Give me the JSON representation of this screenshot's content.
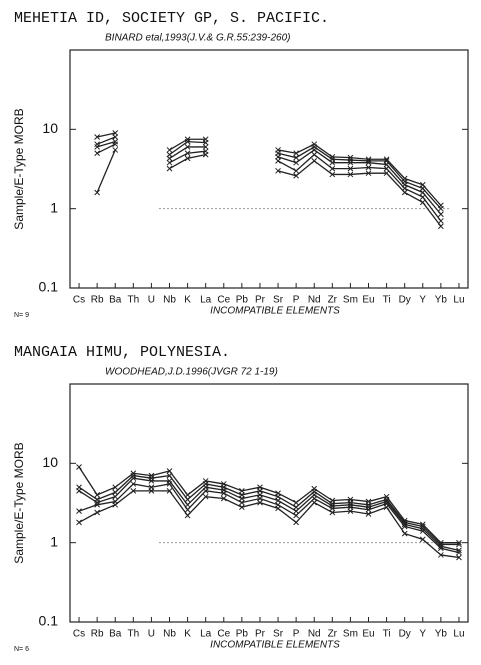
{
  "chart_data": [
    {
      "type": "line",
      "title": "MEHETIA ID, SOCIETY GP, S. PACIFIC.",
      "subtitle": "BINARD etal,1993(J.V.& G.R.55:239-260)",
      "y_label": "Sample/E-Type MORB",
      "x_label": "INCOMPATIBLE ELEMENTS",
      "note": "N= 9",
      "categories": [
        "Cs",
        "Rb",
        "Ba",
        "Th",
        "U",
        "Nb",
        "K",
        "La",
        "Ce",
        "Pb",
        "Pr",
        "Sr",
        "P",
        "Nd",
        "Zr",
        "Sm",
        "Eu",
        "Ti",
        "Dy",
        "Y",
        "Yb",
        "Lu"
      ],
      "log_scale": true,
      "ylim": [
        0.1,
        100
      ],
      "yticks": [
        0.1,
        1,
        10
      ],
      "reference_line": 1,
      "color": "#222222",
      "series": [
        {
          "values": [
            null,
            8,
            9,
            null,
            null,
            5.5,
            7.5,
            7.5,
            null,
            null,
            null,
            5.5,
            5,
            6.5,
            4.5,
            4.4,
            4.2,
            4.2,
            2.4,
            2,
            1.1,
            null
          ]
        },
        {
          "values": [
            null,
            6.5,
            8,
            null,
            null,
            4.8,
            7,
            6.8,
            null,
            null,
            null,
            5,
            4.4,
            6,
            4.2,
            4.1,
            4,
            4,
            2.2,
            1.8,
            1,
            null
          ]
        },
        {
          "values": [
            null,
            6,
            7,
            null,
            null,
            4.3,
            6,
            6,
            null,
            null,
            null,
            4.5,
            3.8,
            5.5,
            3.8,
            3.8,
            3.8,
            3.6,
            2,
            1.6,
            0.85,
            null
          ]
        },
        {
          "values": [
            null,
            5,
            6.5,
            null,
            null,
            3.8,
            5,
            5.3,
            null,
            null,
            null,
            4,
            3,
            4.8,
            3.2,
            3.2,
            3.3,
            3.2,
            1.8,
            1.4,
            0.7,
            null
          ]
        },
        {
          "values": [
            null,
            1.6,
            5.5,
            null,
            null,
            3.2,
            4.3,
            4.8,
            null,
            null,
            null,
            3,
            2.6,
            4,
            2.7,
            2.7,
            2.8,
            2.8,
            1.6,
            1.2,
            0.6,
            null
          ]
        }
      ]
    },
    {
      "type": "line",
      "title": "MANGAIA HIMU, POLYNESIA.",
      "subtitle": "WOODHEAD,J.D.1996(JVGR 72 1-19)",
      "y_label": "Sample/E-Type MORB",
      "x_label": "INCOMPATIBLE ELEMENTS",
      "note": "N= 6",
      "categories": [
        "Cs",
        "Rb",
        "Ba",
        "Th",
        "U",
        "Nb",
        "K",
        "La",
        "Ce",
        "Pb",
        "Pr",
        "Sr",
        "P",
        "Nd",
        "Zr",
        "Sm",
        "Eu",
        "Ti",
        "Dy",
        "Y",
        "Yb",
        "Lu"
      ],
      "log_scale": true,
      "ylim": [
        0.1,
        100
      ],
      "yticks": [
        0.1,
        1,
        10
      ],
      "reference_line": 1,
      "color": "#222222",
      "series": [
        {
          "values": [
            9,
            4,
            5,
            7.5,
            7,
            8,
            4,
            6,
            5.5,
            4.5,
            5,
            4.2,
            3.2,
            4.8,
            3.4,
            3.5,
            3.3,
            3.8,
            1.9,
            1.7,
            1,
            1
          ]
        },
        {
          "values": [
            5,
            3.5,
            4.3,
            7,
            6.5,
            7,
            3.5,
            5.5,
            5,
            4,
            4.5,
            3.8,
            2.8,
            4.4,
            3.1,
            3.2,
            3,
            3.5,
            1.8,
            1.6,
            0.95,
            0.95
          ]
        },
        {
          "values": [
            4.5,
            3.2,
            3.8,
            6.5,
            6,
            6,
            3,
            5,
            4.6,
            3.6,
            4,
            3.4,
            2.5,
            4,
            2.9,
            3,
            2.8,
            3.3,
            1.7,
            1.5,
            0.9,
            0.8
          ]
        },
        {
          "values": [
            2.5,
            3,
            3.3,
            5.5,
            5,
            5.5,
            2.6,
            4.5,
            4.2,
            3.2,
            3.6,
            3,
            2.2,
            3.6,
            2.7,
            2.8,
            2.6,
            3.1,
            1.6,
            1.4,
            0.85,
            0.75
          ]
        },
        {
          "values": [
            1.8,
            2.4,
            3,
            4.5,
            4.5,
            4.5,
            2.2,
            3.8,
            3.6,
            2.8,
            3.2,
            2.7,
            1.8,
            3.2,
            2.4,
            2.5,
            2.3,
            2.8,
            1.3,
            1.1,
            0.7,
            0.65
          ]
        }
      ]
    }
  ]
}
